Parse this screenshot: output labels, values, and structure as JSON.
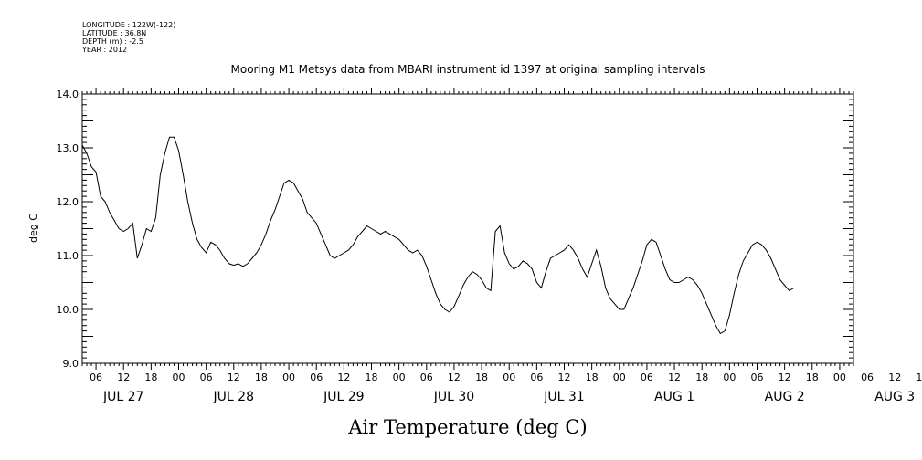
{
  "header": {
    "longitude": "LONGITUDE : 122W(-122)",
    "latitude": "LATITUDE : 36.8N",
    "depth": "DEPTH (m) : -2.5",
    "year": "YEAR : 2012"
  },
  "chart_data": {
    "type": "line",
    "title": "Mooring M1 Metsys data from MBARI instrument id 1397 at original sampling intervals",
    "xlabel": "Air Temperature (deg C)",
    "ylabel": "deg C",
    "ylim": [
      9.0,
      14.0
    ],
    "yticks": [
      "9.0",
      "10.0",
      "11.0",
      "12.0",
      "13.0",
      "14.0"
    ],
    "x_unit": "hours since 2012-07-27 00:00",
    "xlim": [
      3,
      171
    ],
    "hour_tick_labels": [
      "06",
      "12",
      "18",
      "00",
      "06",
      "12",
      "18",
      "00",
      "06",
      "12",
      "18",
      "00",
      "06",
      "12",
      "18",
      "00",
      "06",
      "12",
      "18",
      "00",
      "06",
      "12",
      "18",
      "00",
      "06",
      "12",
      "18",
      "00",
      "06",
      "12",
      "18",
      "00"
    ],
    "day_labels": [
      "JUL 27",
      "JUL 28",
      "JUL 29",
      "JUL 30",
      "JUL 31",
      "AUG  1",
      "AUG  2",
      "AUG  3"
    ],
    "grid": false,
    "series": [
      {
        "color": "#000000",
        "points": [
          [
            3,
            13.05
          ],
          [
            4,
            12.9
          ],
          [
            5,
            12.65
          ],
          [
            6,
            12.55
          ],
          [
            7,
            12.1
          ],
          [
            8,
            12.0
          ],
          [
            9,
            11.8
          ],
          [
            10,
            11.65
          ],
          [
            11,
            11.5
          ],
          [
            12,
            11.45
          ],
          [
            13,
            11.5
          ],
          [
            14,
            11.6
          ],
          [
            15,
            10.95
          ],
          [
            16,
            11.2
          ],
          [
            17,
            11.5
          ],
          [
            18,
            11.45
          ],
          [
            19,
            11.7
          ],
          [
            20,
            12.5
          ],
          [
            21,
            12.9
          ],
          [
            22,
            13.2
          ],
          [
            23,
            13.2
          ],
          [
            24,
            12.95
          ],
          [
            25,
            12.5
          ],
          [
            26,
            12.0
          ],
          [
            27,
            11.6
          ],
          [
            28,
            11.3
          ],
          [
            29,
            11.15
          ],
          [
            30,
            11.05
          ],
          [
            31,
            11.25
          ],
          [
            32,
            11.2
          ],
          [
            33,
            11.1
          ],
          [
            34,
            10.95
          ],
          [
            35,
            10.85
          ],
          [
            36,
            10.82
          ],
          [
            37,
            10.85
          ],
          [
            38,
            10.8
          ],
          [
            39,
            10.85
          ],
          [
            40,
            10.95
          ],
          [
            41,
            11.05
          ],
          [
            42,
            11.2
          ],
          [
            43,
            11.4
          ],
          [
            44,
            11.65
          ],
          [
            45,
            11.85
          ],
          [
            46,
            12.1
          ],
          [
            47,
            12.35
          ],
          [
            48,
            12.4
          ],
          [
            49,
            12.35
          ],
          [
            50,
            12.2
          ],
          [
            51,
            12.05
          ],
          [
            52,
            11.8
          ],
          [
            53,
            11.7
          ],
          [
            54,
            11.6
          ],
          [
            55,
            11.4
          ],
          [
            56,
            11.2
          ],
          [
            57,
            11.0
          ],
          [
            58,
            10.95
          ],
          [
            59,
            11.0
          ],
          [
            60,
            11.05
          ],
          [
            61,
            11.1
          ],
          [
            62,
            11.2
          ],
          [
            63,
            11.35
          ],
          [
            64,
            11.45
          ],
          [
            65,
            11.55
          ],
          [
            66,
            11.5
          ],
          [
            67,
            11.45
          ],
          [
            68,
            11.4
          ],
          [
            69,
            11.45
          ],
          [
            70,
            11.4
          ],
          [
            71,
            11.35
          ],
          [
            72,
            11.3
          ],
          [
            73,
            11.2
          ],
          [
            74,
            11.1
          ],
          [
            75,
            11.05
          ],
          [
            76,
            11.1
          ],
          [
            77,
            11.0
          ],
          [
            78,
            10.8
          ],
          [
            79,
            10.55
          ],
          [
            80,
            10.3
          ],
          [
            81,
            10.1
          ],
          [
            82,
            10.0
          ],
          [
            83,
            9.95
          ],
          [
            84,
            10.05
          ],
          [
            85,
            10.25
          ],
          [
            86,
            10.45
          ],
          [
            87,
            10.6
          ],
          [
            88,
            10.7
          ],
          [
            89,
            10.65
          ],
          [
            90,
            10.55
          ],
          [
            91,
            10.4
          ],
          [
            92,
            10.35
          ],
          [
            93,
            11.45
          ],
          [
            94,
            11.55
          ],
          [
            95,
            11.05
          ],
          [
            96,
            10.85
          ],
          [
            97,
            10.75
          ],
          [
            98,
            10.8
          ],
          [
            99,
            10.9
          ],
          [
            100,
            10.85
          ],
          [
            101,
            10.75
          ],
          [
            102,
            10.5
          ],
          [
            103,
            10.4
          ],
          [
            104,
            10.7
          ],
          [
            105,
            10.95
          ],
          [
            106,
            11.0
          ],
          [
            107,
            11.05
          ],
          [
            108,
            11.1
          ],
          [
            109,
            11.2
          ],
          [
            110,
            11.1
          ],
          [
            111,
            10.95
          ],
          [
            112,
            10.75
          ],
          [
            113,
            10.6
          ],
          [
            114,
            10.85
          ],
          [
            115,
            11.1
          ],
          [
            116,
            10.8
          ],
          [
            117,
            10.4
          ],
          [
            118,
            10.2
          ],
          [
            119,
            10.1
          ],
          [
            120,
            10.0
          ],
          [
            121,
            10.0
          ],
          [
            122,
            10.2
          ],
          [
            123,
            10.4
          ],
          [
            124,
            10.65
          ],
          [
            125,
            10.9
          ],
          [
            126,
            11.2
          ],
          [
            127,
            11.3
          ],
          [
            128,
            11.25
          ],
          [
            129,
            11.0
          ],
          [
            130,
            10.75
          ],
          [
            131,
            10.55
          ],
          [
            132,
            10.5
          ],
          [
            133,
            10.5
          ],
          [
            134,
            10.55
          ],
          [
            135,
            10.6
          ],
          [
            136,
            10.55
          ],
          [
            137,
            10.45
          ],
          [
            138,
            10.3
          ],
          [
            139,
            10.1
          ],
          [
            140,
            9.9
          ],
          [
            141,
            9.7
          ],
          [
            142,
            9.55
          ],
          [
            143,
            9.6
          ],
          [
            144,
            9.9
          ],
          [
            145,
            10.3
          ],
          [
            146,
            10.65
          ],
          [
            147,
            10.9
          ],
          [
            148,
            11.05
          ],
          [
            149,
            11.2
          ],
          [
            150,
            11.25
          ],
          [
            151,
            11.2
          ],
          [
            152,
            11.1
          ],
          [
            153,
            10.95
          ],
          [
            154,
            10.75
          ],
          [
            155,
            10.55
          ],
          [
            156,
            10.45
          ],
          [
            157,
            10.35
          ],
          [
            158,
            10.4
          ]
        ]
      }
    ]
  }
}
